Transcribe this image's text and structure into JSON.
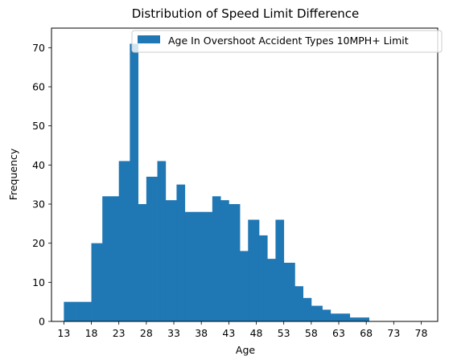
{
  "chart_data": {
    "type": "bar",
    "title": "Distribution of Speed Limit Difference",
    "xlabel": "Age",
    "ylabel": "Frequency",
    "legend": {
      "label": "Age In Overshoot Accident Types 10MPH+ Limit",
      "placement": "top-right"
    },
    "series": [
      {
        "name": "Age In Overshoot Accident Types 10MPH+ Limit",
        "color": "#1f77b4",
        "bins": [
          {
            "x0": 13,
            "x1": 15,
            "value": 5
          },
          {
            "x0": 15,
            "x1": 18,
            "value": 5
          },
          {
            "x0": 18,
            "x1": 20,
            "value": 20
          },
          {
            "x0": 20,
            "x1": 23,
            "value": 32
          },
          {
            "x0": 23,
            "x1": 25,
            "value": 41
          },
          {
            "x0": 25,
            "x1": 26.5,
            "value": 71
          },
          {
            "x0": 26.5,
            "x1": 28,
            "value": 30
          },
          {
            "x0": 28,
            "x1": 30,
            "value": 37
          },
          {
            "x0": 30,
            "x1": 31.5,
            "value": 41
          },
          {
            "x0": 31.5,
            "x1": 33.5,
            "value": 31
          },
          {
            "x0": 33.5,
            "x1": 35,
            "value": 35
          },
          {
            "x0": 35,
            "x1": 38,
            "value": 28
          },
          {
            "x0": 38,
            "x1": 40,
            "value": 28
          },
          {
            "x0": 40,
            "x1": 41.5,
            "value": 32
          },
          {
            "x0": 41.5,
            "x1": 43,
            "value": 31
          },
          {
            "x0": 43,
            "x1": 45,
            "value": 30
          },
          {
            "x0": 45,
            "x1": 46.5,
            "value": 18
          },
          {
            "x0": 46.5,
            "x1": 48.5,
            "value": 26
          },
          {
            "x0": 48.5,
            "x1": 50,
            "value": 22
          },
          {
            "x0": 50,
            "x1": 51.5,
            "value": 16
          },
          {
            "x0": 51.5,
            "x1": 53,
            "value": 26
          },
          {
            "x0": 53,
            "x1": 55,
            "value": 15
          },
          {
            "x0": 55,
            "x1": 56.5,
            "value": 9
          },
          {
            "x0": 56.5,
            "x1": 58,
            "value": 6
          },
          {
            "x0": 58,
            "x1": 60,
            "value": 4
          },
          {
            "x0": 60,
            "x1": 61.5,
            "value": 3
          },
          {
            "x0": 61.5,
            "x1": 63,
            "value": 2
          },
          {
            "x0": 63,
            "x1": 65,
            "value": 2
          },
          {
            "x0": 65,
            "x1": 66.5,
            "value": 1
          },
          {
            "x0": 66.5,
            "x1": 68.5,
            "value": 1
          }
        ]
      }
    ],
    "xlim": [
      10.75,
      81
    ],
    "ylim": [
      0,
      75
    ],
    "x_ticks": [
      13,
      18,
      23,
      28,
      33,
      38,
      43,
      48,
      53,
      58,
      63,
      68,
      73,
      78
    ],
    "y_ticks": [
      0,
      10,
      20,
      30,
      40,
      50,
      60,
      70
    ],
    "grid": false
  }
}
